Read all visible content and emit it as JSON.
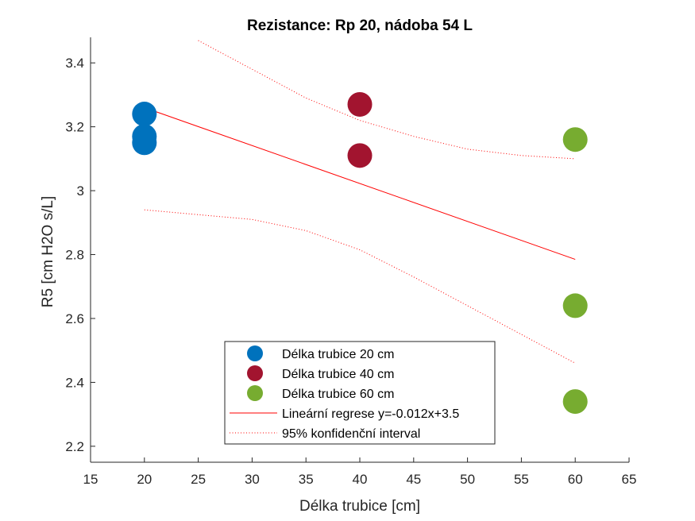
{
  "chart_data": {
    "type": "scatter",
    "title": "Rezistance: Rp 20, nádoba 54 L",
    "xlabel": "Délka trubice [cm]",
    "ylabel": "R5 [cm H2O s/L]",
    "xlim": [
      15,
      65
    ],
    "ylim": [
      2.15,
      3.48
    ],
    "xticks": [
      15,
      20,
      25,
      30,
      35,
      40,
      45,
      50,
      55,
      60,
      65
    ],
    "yticks": [
      2.2,
      2.4,
      2.6,
      2.8,
      3.0,
      3.2,
      3.4
    ],
    "xtick_labels": [
      "15",
      "20",
      "25",
      "30",
      "35",
      "40",
      "45",
      "50",
      "55",
      "60",
      "65"
    ],
    "ytick_labels": [
      "2.2",
      "2.4",
      "2.6",
      "2.8",
      "3",
      "3.2",
      "3.4"
    ],
    "grid": false,
    "legend_position": "bottom-center",
    "series": [
      {
        "name": "Délka trubice 20 cm",
        "color": "#0072BD",
        "points": [
          [
            20,
            3.24
          ],
          [
            20,
            3.17
          ],
          [
            20,
            3.15
          ]
        ]
      },
      {
        "name": "Délka trubice 40 cm",
        "color": "#A2142F",
        "points": [
          [
            40,
            3.27
          ],
          [
            40,
            3.11
          ]
        ]
      },
      {
        "name": "Délka trubice 60 cm",
        "color": "#77AC30",
        "points": [
          [
            60,
            3.16
          ],
          [
            60,
            2.64
          ],
          [
            60,
            2.34
          ]
        ]
      }
    ],
    "regression": {
      "name": "Lineární regrese y=-0.012x+3.5",
      "color": "#FF0000",
      "points": [
        [
          20,
          3.26
        ],
        [
          60,
          2.785
        ]
      ]
    },
    "confidence_interval": {
      "name": "95% konfidenční interval",
      "color": "#FF0000",
      "upper": [
        [
          25,
          3.47
        ],
        [
          30,
          3.38
        ],
        [
          35,
          3.29
        ],
        [
          40,
          3.22
        ],
        [
          45,
          3.17
        ],
        [
          50,
          3.13
        ],
        [
          55,
          3.11
        ],
        [
          60,
          3.1
        ]
      ],
      "lower": [
        [
          20,
          2.94
        ],
        [
          25,
          2.925
        ],
        [
          30,
          2.91
        ],
        [
          35,
          2.875
        ],
        [
          40,
          2.815
        ],
        [
          45,
          2.73
        ],
        [
          50,
          2.64
        ],
        [
          55,
          2.55
        ],
        [
          60,
          2.46
        ]
      ]
    }
  }
}
